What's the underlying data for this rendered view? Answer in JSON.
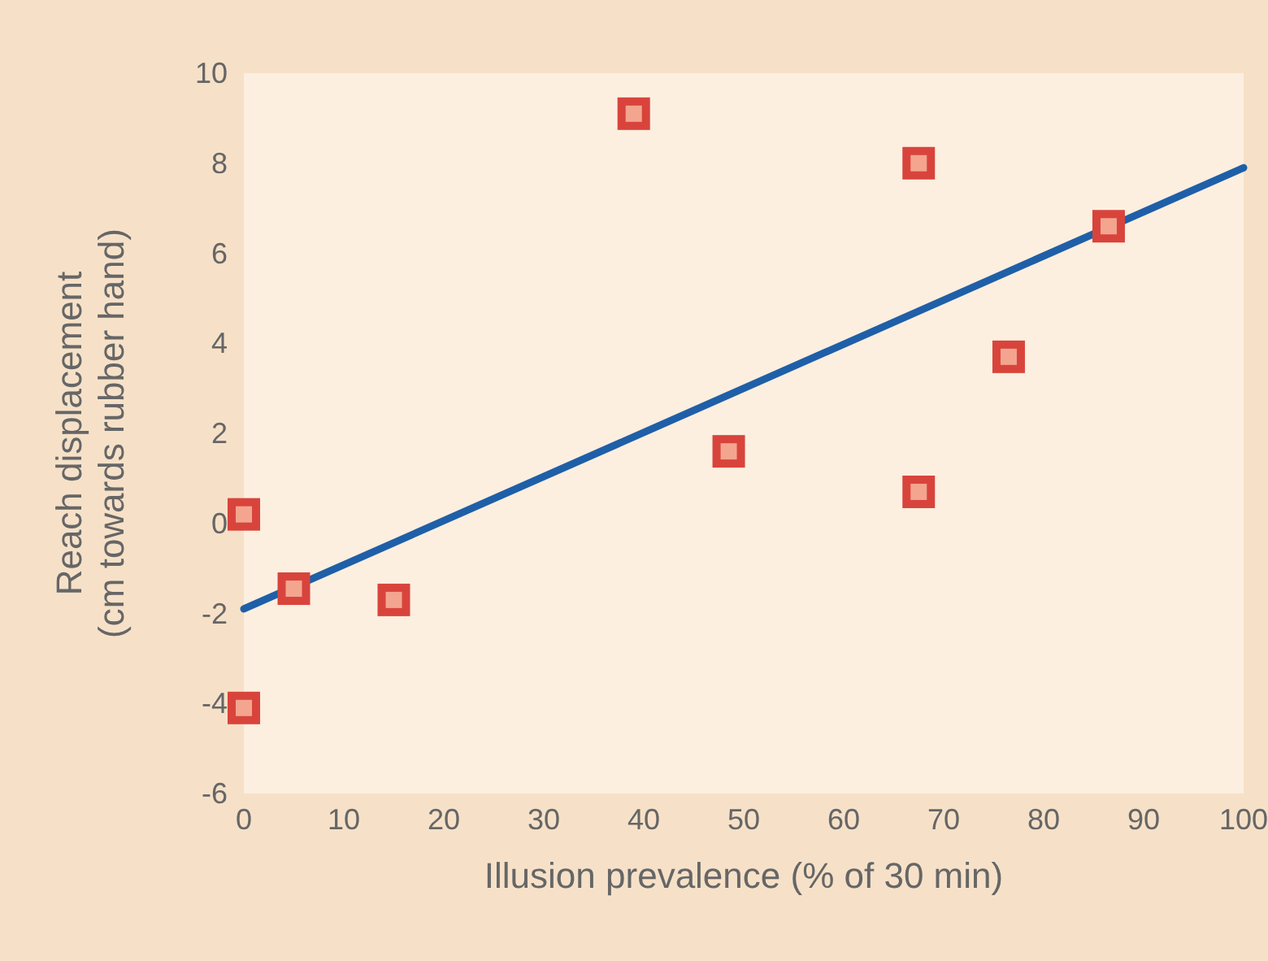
{
  "chart_data": {
    "type": "scatter",
    "xlabel": "Illusion prevalence (% of 30 min)",
    "ylabel": "Reach displacement\n(cm towards rubber hand)",
    "xlim": [
      0,
      100
    ],
    "ylim": [
      -6,
      10
    ],
    "xticks": [
      0,
      10,
      20,
      30,
      40,
      50,
      60,
      70,
      80,
      90,
      100
    ],
    "yticks": [
      -6,
      -4,
      -2,
      0,
      2,
      4,
      6,
      8,
      10
    ],
    "grid": false,
    "series": [
      {
        "type": "scatter",
        "color": "#d8443c",
        "marker": "square",
        "x": [
          0,
          0,
          5,
          15,
          39,
          48.5,
          67.5,
          67.5,
          76.5,
          86.5
        ],
        "values": [
          0.2,
          -4.1,
          -1.45,
          -1.7,
          9.1,
          1.6,
          8.0,
          0.7,
          3.7,
          6.6
        ]
      },
      {
        "type": "line",
        "color": "#1f5fa8",
        "line_style": "solid",
        "x": [
          0,
          100
        ],
        "values": [
          -1.9,
          7.9
        ]
      }
    ]
  }
}
